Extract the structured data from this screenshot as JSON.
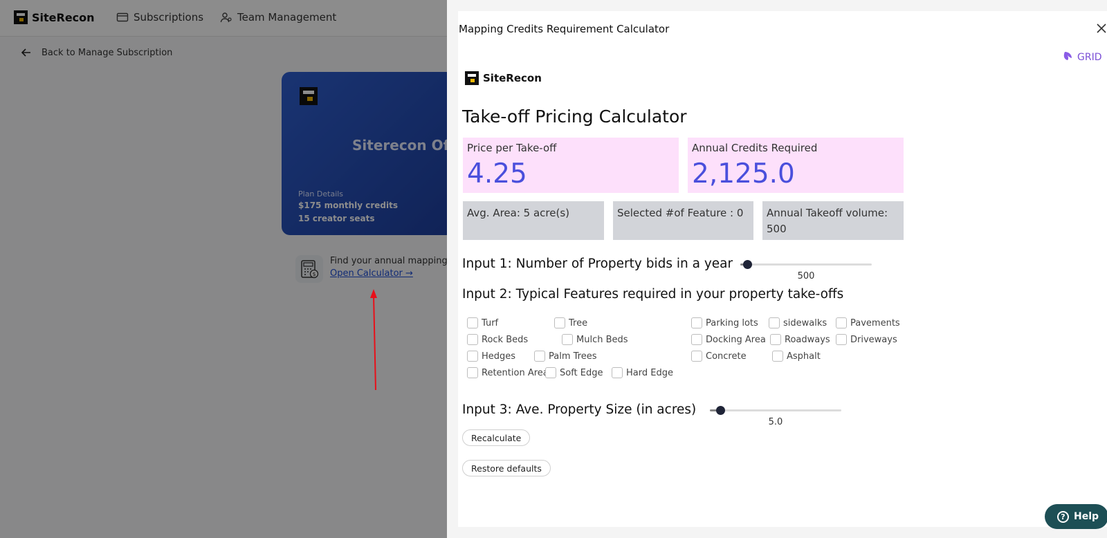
{
  "app": {
    "logo": "SiteRecon",
    "nav": [
      {
        "label": "Subscriptions",
        "icon": "card-icon"
      },
      {
        "label": "Team Management",
        "icon": "team-icon"
      }
    ],
    "back_label": "Back to Manage Subscription",
    "plan_card": {
      "title": "Siterecon Offi",
      "details_label": "Plan Details",
      "line1": "$175 monthly credits",
      "line2": "15 creator seats"
    },
    "calculator_prompt": "Find your annual mapping c",
    "calculator_link": "Open Calculator →"
  },
  "drawer": {
    "title": "Mapping Credits Requirement Calculator",
    "grid_logo": "GRID",
    "brand": "SiteRecon",
    "page_title": "Take-off Pricing Calculator",
    "price": {
      "label": "Price per Take-off",
      "value": "4.25"
    },
    "credits": {
      "label": "Annual Credits Required",
      "value": "2,125.0"
    },
    "info": {
      "avg_area": "Avg. Area: 5 acre(s)",
      "selected": "Selected #of Feature : 0",
      "volume": "Annual Takeoff volume: 500"
    },
    "input1": {
      "label": "Input 1: Number of Property bids in a year",
      "value": "500",
      "fraction": 0.05
    },
    "input2": {
      "label": "Input 2: Typical Features required in your property take-offs"
    },
    "features": {
      "turf": "Turf",
      "tree": "Tree",
      "parking_lots": "Parking lots",
      "sidewalks": "sidewalks",
      "pavements": "Pavements",
      "rock_beds": "Rock Beds",
      "mulch_beds": "Mulch Beds",
      "docking_area": "Docking Area",
      "roadways": "Roadways",
      "driveways": "Driveways",
      "hedges": "Hedges",
      "palm_trees": "Palm Trees",
      "concrete": "Concrete",
      "asphalt": "Asphalt",
      "retention_area": "Retention Area",
      "soft_edge": "Soft Edge",
      "hard_edge": "Hard Edge"
    },
    "input3": {
      "label": "Input 3: Ave. Property Size (in acres)",
      "value": "5.0",
      "fraction": 0.08
    },
    "recalculate": "Recalculate",
    "restore": "Restore defaults"
  },
  "help": "Help",
  "colors": {
    "accent": "#4a4fdc",
    "metric_bg": "#fde0fb",
    "info_bg": "#d2d4d9",
    "help_bg": "#1d4f55"
  }
}
